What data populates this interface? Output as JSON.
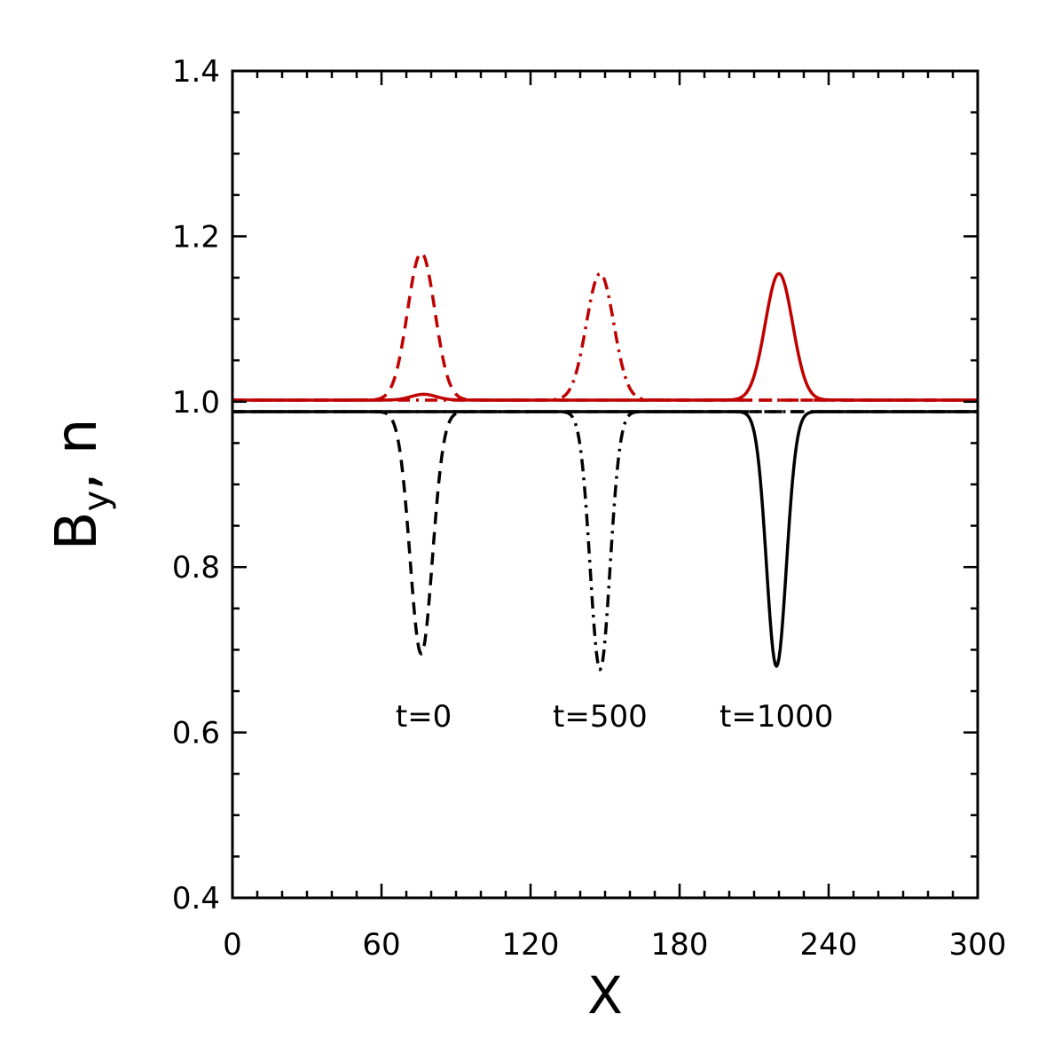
{
  "chart_data": {
    "type": "line",
    "title": "",
    "xlabel": "X",
    "ylabel_main": "B",
    "ylabel_sub": "y",
    "ylabel_tail": ", n",
    "xlim": [
      0,
      300
    ],
    "ylim": [
      0.4,
      1.4
    ],
    "xticks": [
      0,
      60,
      120,
      180,
      240,
      300
    ],
    "xtick_labels": [
      "0",
      "60",
      "120",
      "180",
      "240",
      "300"
    ],
    "yticks": [
      0.4,
      0.6,
      0.8,
      1.0,
      1.2,
      1.4
    ],
    "ytick_labels": [
      "0.4",
      "0.6",
      "0.8",
      "1.0",
      "1.2",
      "1.4"
    ],
    "grid": false,
    "colors": {
      "black": "#000000",
      "red": "#c00000"
    },
    "series": [
      {
        "style": "dashed",
        "color": "#c00000",
        "baseline": 1.002,
        "center": 76,
        "width": 5.5,
        "amplitude": 0.178
      },
      {
        "style": "dashdot",
        "color": "#c00000",
        "baseline": 1.002,
        "center": 148,
        "width": 5.5,
        "amplitude": 0.153
      },
      {
        "style": "solid",
        "color": "#c00000",
        "baseline": 1.002,
        "center": 220,
        "width": 5.5,
        "amplitude": 0.153,
        "small_bump": {
          "center": 77,
          "amplitude": 0.007
        }
      },
      {
        "style": "dashed",
        "color": "#000000",
        "baseline": 0.988,
        "center": 76,
        "width": 4.5,
        "amplitude": -0.293
      },
      {
        "style": "dashdot",
        "color": "#000000",
        "baseline": 0.988,
        "center": 148,
        "width": 4.0,
        "amplitude": -0.312
      },
      {
        "style": "solid",
        "color": "#000000",
        "baseline": 0.988,
        "center": 219,
        "width": 4.0,
        "amplitude": -0.308
      }
    ],
    "annotations": [
      {
        "text": "t=0",
        "x": 77,
        "y": 0.607
      },
      {
        "text": "t=500",
        "x": 148,
        "y": 0.607
      },
      {
        "text": "t=1000",
        "x": 219,
        "y": 0.607
      }
    ]
  }
}
